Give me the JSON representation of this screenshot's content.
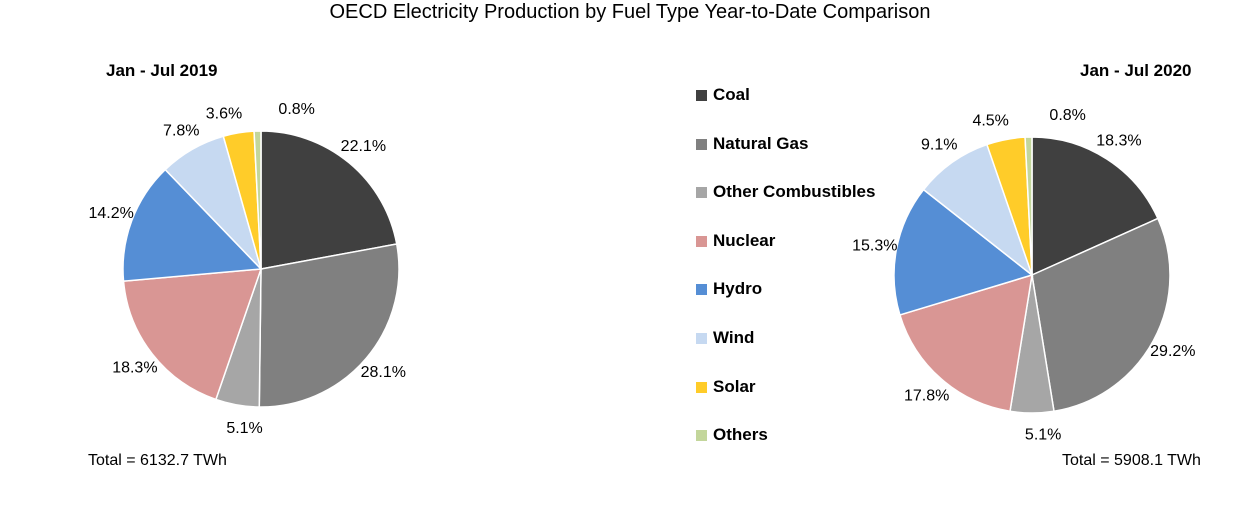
{
  "title": "OECD Electricity Production by Fuel Type Year-to-Date Comparison",
  "legend": [
    {
      "name": "Coal",
      "color": "#404040"
    },
    {
      "name": "Natural Gas",
      "color": "#808080"
    },
    {
      "name": "Other Combustibles",
      "color": "#a6a6a6"
    },
    {
      "name": "Nuclear",
      "color": "#d99694"
    },
    {
      "name": "Hydro",
      "color": "#558ed5"
    },
    {
      "name": "Wind",
      "color": "#c6d9f1"
    },
    {
      "name": "Solar",
      "color": "#ffcc29"
    },
    {
      "name": "Others",
      "color": "#c3d69b"
    }
  ],
  "chart_data": [
    {
      "type": "pie",
      "title": "Jan - Jul 2019",
      "total_label": "Total = 6132.7 TWh",
      "categories": [
        "Coal",
        "Natural Gas",
        "Other Combustibles",
        "Nuclear",
        "Hydro",
        "Wind",
        "Solar",
        "Others"
      ],
      "values": [
        22.1,
        28.1,
        5.1,
        18.3,
        14.2,
        7.8,
        3.6,
        0.8
      ],
      "labels": [
        "22.1%",
        "28.1%",
        "5.1%",
        "18.3%",
        "14.2%",
        "7.8%",
        "3.6%",
        "0.8%"
      ],
      "legend_position": "between charts"
    },
    {
      "type": "pie",
      "title": "Jan - Jul 2020",
      "total_label": "Total = 5908.1 TWh",
      "categories": [
        "Coal",
        "Natural Gas",
        "Other Combustibles",
        "Nuclear",
        "Hydro",
        "Wind",
        "Solar",
        "Others"
      ],
      "values": [
        18.3,
        29.2,
        5.1,
        17.8,
        15.3,
        9.1,
        4.5,
        0.8
      ],
      "labels": [
        "18.3%",
        "29.2%",
        "5.1%",
        "17.8%",
        "15.3%",
        "9.1%",
        "4.5%",
        "0.8%"
      ],
      "legend_position": "between charts"
    }
  ]
}
